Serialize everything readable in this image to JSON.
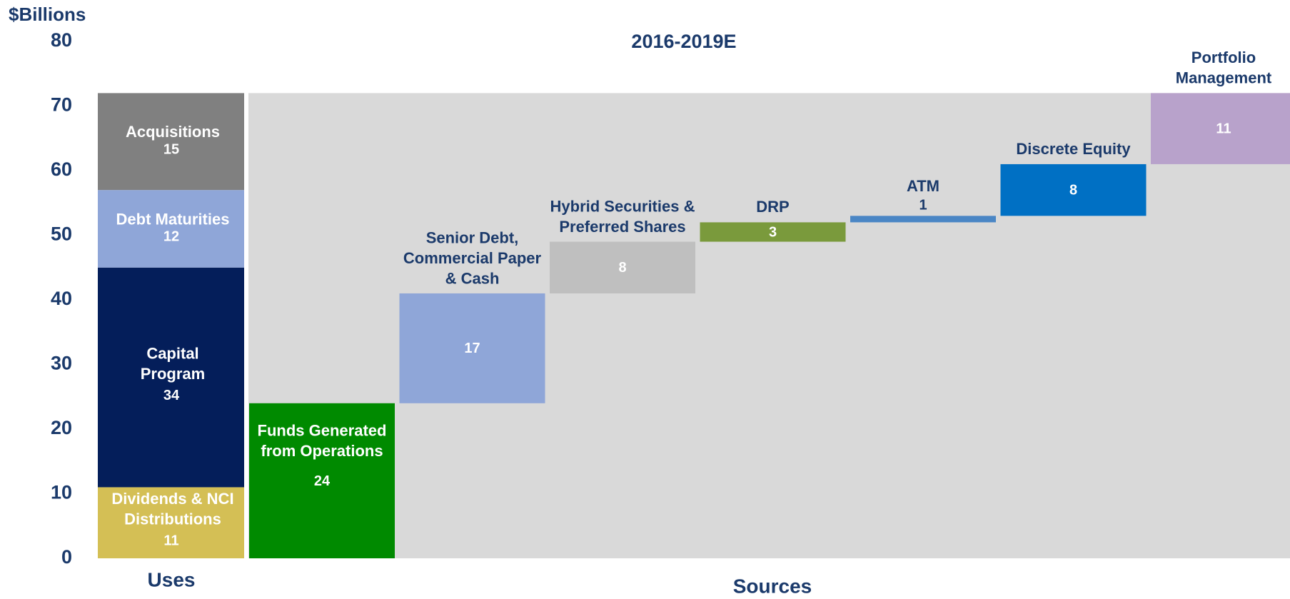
{
  "chart_data": [
    {
      "type": "stacked_bar",
      "y_label": "$Billions",
      "x_label": "Uses",
      "ylim": [
        0,
        80
      ],
      "yticks": [
        0,
        10,
        20,
        30,
        40,
        50,
        60,
        70,
        80
      ],
      "series": [
        {
          "name": "Dividends & NCI\nDistributions",
          "color": "#d4bf55",
          "values": [
            11
          ]
        },
        {
          "name": "Capital\nProgram",
          "color": "#041e5a",
          "values": [
            34
          ]
        },
        {
          "name": "Debt Maturities",
          "color": "#8fa6d8",
          "values": [
            12
          ]
        },
        {
          "name": "Acquisitions",
          "color": "#808080",
          "values": [
            15
          ]
        }
      ]
    },
    {
      "type": "waterfall",
      "title": "2016-2019E",
      "x_label": "Sources",
      "ylim": [
        0,
        80
      ],
      "categories": [
        "Funds Generated\nfrom Operations",
        "Senior Debt,\nCommercial Paper\n& Cash",
        "Hybrid Securities &\nPreferred Shares",
        "DRP",
        "ATM",
        "Discrete Equity",
        "Portfolio\nManagement"
      ],
      "values": [
        24,
        17,
        8,
        3,
        1,
        8,
        11
      ],
      "colors": [
        "#008a00",
        "#8fa6d8",
        "#bfbfbf",
        "#7a9a3c",
        "#4a86c5",
        "#0070c4",
        "#b8a2cb"
      ]
    }
  ]
}
